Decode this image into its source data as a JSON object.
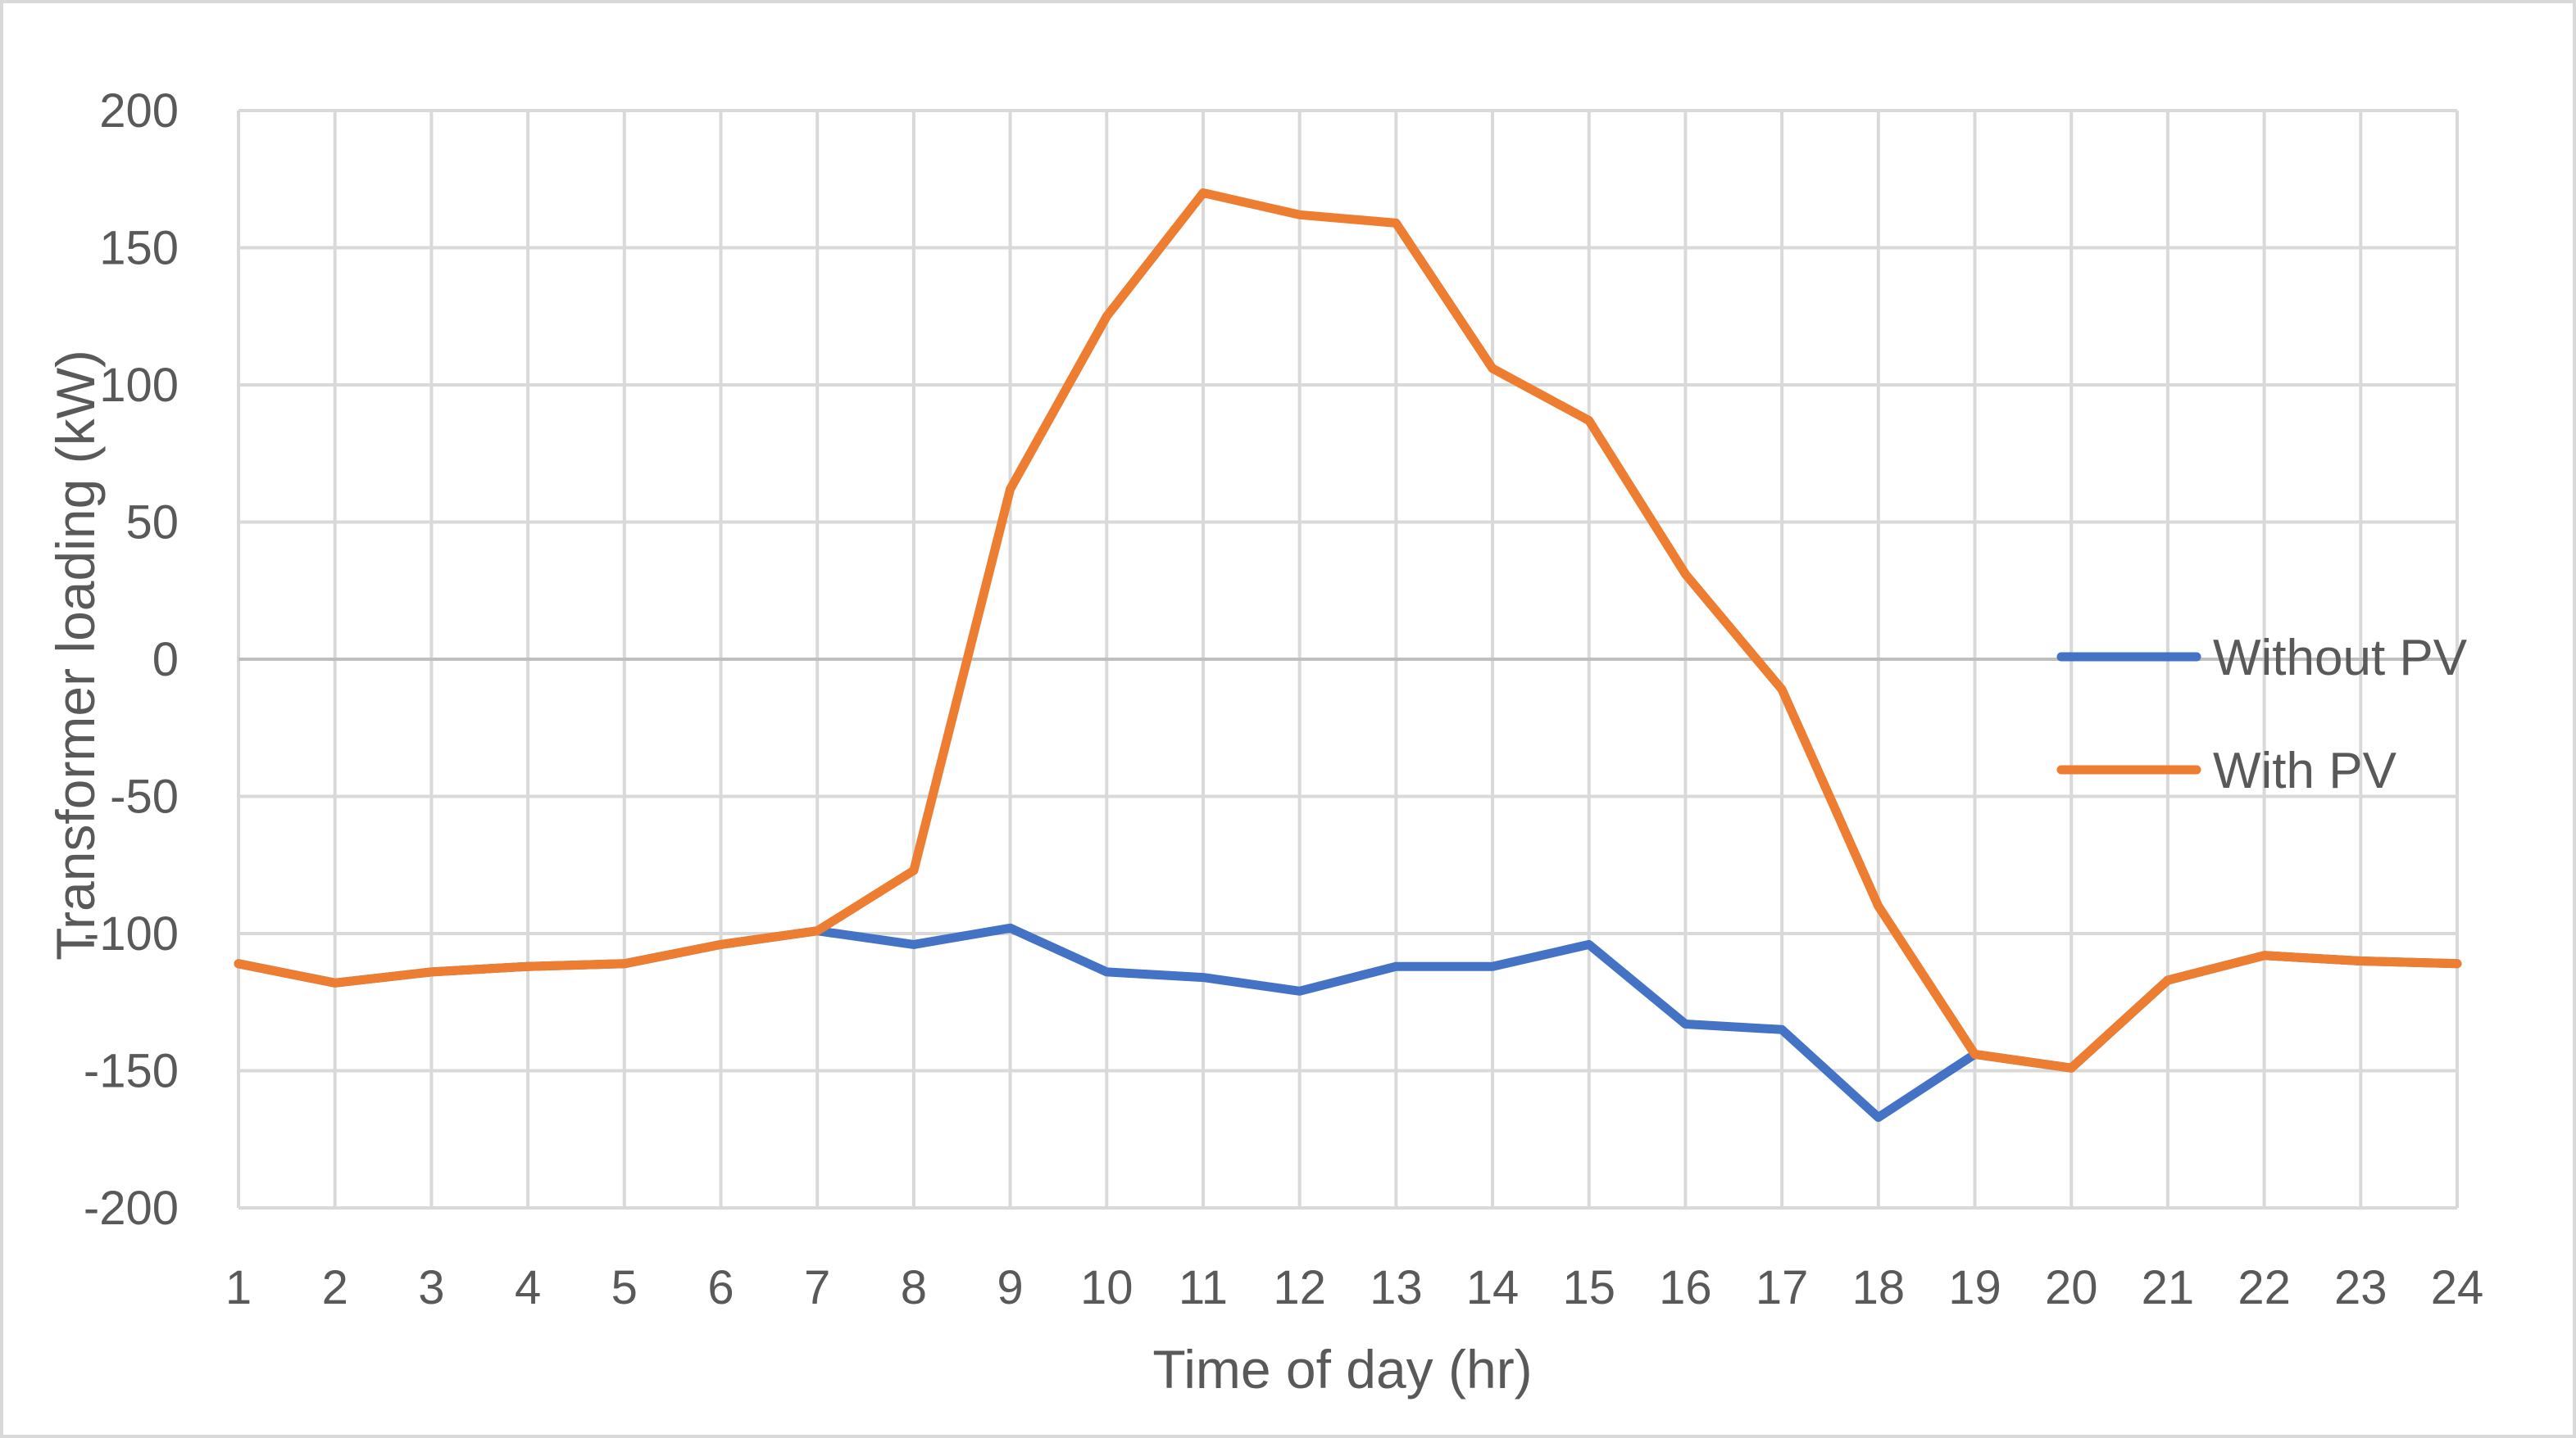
{
  "chart_data": {
    "type": "line",
    "title": "",
    "xlabel": "Time of day (hr)",
    "ylabel": "Transformer loading (kW)",
    "categories": [
      "1",
      "2",
      "3",
      "4",
      "5",
      "6",
      "7",
      "8",
      "9",
      "10",
      "11",
      "12",
      "13",
      "14",
      "15",
      "16",
      "17",
      "18",
      "19",
      "20",
      "21",
      "22",
      "23",
      "24"
    ],
    "ylim": [
      -200,
      200
    ],
    "yticks": [
      "200",
      "150",
      "100",
      "50",
      "0",
      "-50",
      "-100",
      "-150",
      "-200"
    ],
    "ytick_values": [
      200,
      150,
      100,
      50,
      0,
      -50,
      -100,
      -150,
      -200
    ],
    "grid": true,
    "legend_position": "right",
    "series": [
      {
        "name": "Without PV",
        "color": "#4472c4",
        "values": [
          -111,
          -118,
          -114,
          -112,
          -111,
          -104,
          -99,
          -104,
          -98,
          -114,
          -116,
          -121,
          -112,
          -112,
          -104,
          -133,
          -135,
          -167,
          -144,
          -149,
          -117,
          -108,
          -110,
          -111
        ]
      },
      {
        "name": "With PV",
        "color": "#ed7d31",
        "values": [
          -111,
          -118,
          -114,
          -112,
          -111,
          -104,
          -99,
          -77,
          62,
          125,
          170,
          162,
          159,
          106,
          87,
          31,
          -11,
          -90,
          -144,
          -149,
          -117,
          -108,
          -110,
          -111
        ]
      }
    ]
  }
}
